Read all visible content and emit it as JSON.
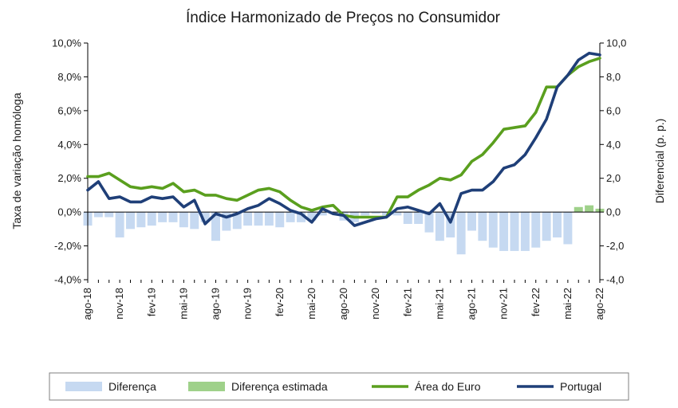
{
  "chart_data": {
    "type": "bar+line",
    "title": "Índice Harmonizado de Preços no Consumidor",
    "ylabel_left": "Taxa de variação homóloga",
    "ylabel_right": "Diferencial (p. p.)",
    "ylim_left": [
      -4,
      10
    ],
    "ylim_right": [
      -4,
      10
    ],
    "y_ticks_left": [
      "-4,0%",
      "-2,0%",
      "0,0%",
      "2,0%",
      "4,0%",
      "6,0%",
      "8,0%",
      "10,0%"
    ],
    "y_ticks_right": [
      "-4,0",
      "-2,0",
      "0,0",
      "2,0",
      "4,0",
      "6,0",
      "8,0",
      "10,0"
    ],
    "x_ticks": [
      "ago-18",
      "nov-18",
      "fev-19",
      "mai-19",
      "ago-19",
      "nov-19",
      "fev-20",
      "mai-20",
      "ago-20",
      "nov-20",
      "fev-21",
      "mai-21",
      "ago-21",
      "nov-21",
      "fev-22",
      "mai-22",
      "ago-22"
    ],
    "months": [
      "ago-18",
      "set-18",
      "out-18",
      "nov-18",
      "dez-18",
      "jan-19",
      "fev-19",
      "mar-19",
      "abr-19",
      "mai-19",
      "jun-19",
      "jul-19",
      "ago-19",
      "set-19",
      "out-19",
      "nov-19",
      "dez-19",
      "jan-20",
      "fev-20",
      "mar-20",
      "abr-20",
      "mai-20",
      "jun-20",
      "jul-20",
      "ago-20",
      "set-20",
      "out-20",
      "nov-20",
      "dez-20",
      "jan-21",
      "fev-21",
      "mar-21",
      "abr-21",
      "mai-21",
      "jun-21",
      "jul-21",
      "ago-21",
      "set-21",
      "out-21",
      "nov-21",
      "dez-21",
      "jan-22",
      "fev-22",
      "mar-22",
      "abr-22",
      "mai-22",
      "jun-22",
      "jul-22",
      "ago-22"
    ],
    "grid": false,
    "legend_position": "bottom",
    "series": [
      {
        "name": "Diferença",
        "kind": "bar",
        "color": "#c6d9f1",
        "values": [
          -0.8,
          -0.3,
          -0.3,
          -1.5,
          -1.0,
          -0.9,
          -0.8,
          -0.6,
          -0.6,
          -0.9,
          -1.0,
          -0.6,
          -1.7,
          -1.1,
          -1.0,
          -0.8,
          -0.8,
          -0.8,
          -0.9,
          -0.6,
          -0.6,
          -0.5,
          -0.2,
          -0.1,
          -0.5,
          -0.6,
          -0.2,
          -0.1,
          -0.2,
          -0.2,
          -0.7,
          -0.7,
          -1.2,
          -1.7,
          -1.5,
          -2.5,
          -1.1,
          -1.7,
          -2.1,
          -2.3,
          -2.3,
          -2.3,
          -2.1,
          -1.7,
          -1.5,
          -1.9,
          null,
          null,
          null
        ]
      },
      {
        "name": "Diferença estimada",
        "kind": "bar",
        "color": "#9fd18a",
        "values": [
          null,
          null,
          null,
          null,
          null,
          null,
          null,
          null,
          null,
          null,
          null,
          null,
          null,
          null,
          null,
          null,
          null,
          null,
          null,
          null,
          null,
          null,
          null,
          null,
          null,
          null,
          null,
          null,
          null,
          null,
          null,
          null,
          null,
          null,
          null,
          null,
          null,
          null,
          null,
          null,
          null,
          null,
          null,
          null,
          null,
          null,
          0.3,
          0.4,
          0.2
        ]
      },
      {
        "name": "Área do Euro",
        "kind": "line",
        "color": "#5a9f1e",
        "values": [
          2.1,
          2.1,
          2.3,
          1.9,
          1.5,
          1.4,
          1.5,
          1.4,
          1.7,
          1.2,
          1.3,
          1.0,
          1.0,
          0.8,
          0.7,
          1.0,
          1.3,
          1.4,
          1.2,
          0.7,
          0.3,
          0.1,
          0.3,
          0.4,
          -0.2,
          -0.3,
          -0.3,
          -0.3,
          -0.3,
          0.9,
          0.9,
          1.3,
          1.6,
          2.0,
          1.9,
          2.2,
          3.0,
          3.4,
          4.1,
          4.9,
          5.0,
          5.1,
          5.9,
          7.4,
          7.4,
          8.1,
          8.6,
          8.9,
          9.1
        ]
      },
      {
        "name": "Portugal",
        "kind": "line",
        "color": "#1f3f78",
        "values": [
          1.3,
          1.8,
          0.8,
          0.9,
          0.6,
          0.6,
          0.9,
          0.8,
          0.9,
          0.3,
          0.7,
          -0.7,
          -0.1,
          -0.3,
          -0.1,
          0.2,
          0.4,
          0.8,
          0.5,
          0.1,
          -0.1,
          -0.6,
          0.2,
          -0.1,
          -0.2,
          -0.8,
          -0.6,
          -0.4,
          -0.3,
          0.2,
          0.3,
          0.1,
          -0.1,
          0.5,
          -0.6,
          1.1,
          1.3,
          1.3,
          1.8,
          2.6,
          2.8,
          3.4,
          4.4,
          5.5,
          7.4,
          8.1,
          9.0,
          9.4,
          9.3
        ]
      }
    ]
  }
}
